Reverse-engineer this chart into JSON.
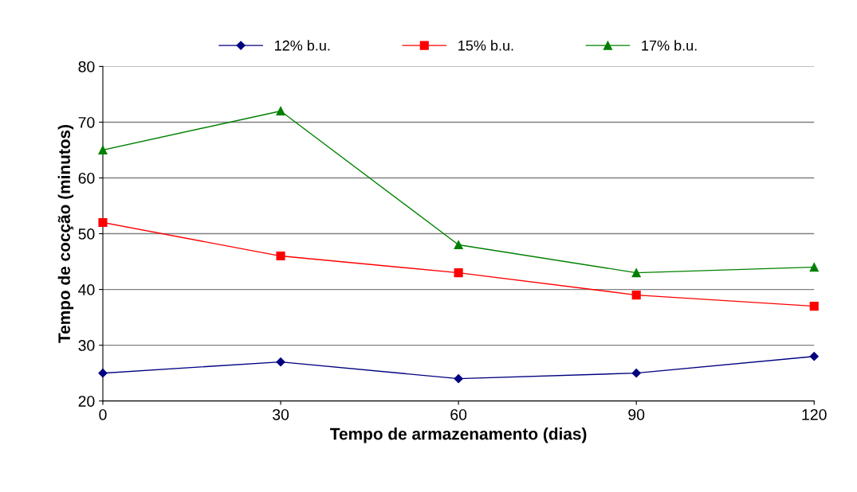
{
  "chart_data": {
    "type": "line",
    "xlabel": "Tempo de armazenamento (dias)",
    "ylabel": "Tempo de cocção (minutos)",
    "x": [
      0,
      30,
      60,
      90,
      120
    ],
    "series": [
      {
        "name": "12% b.u.",
        "color": "#000080",
        "marker": "diamond",
        "values": [
          25,
          27,
          24,
          25,
          28
        ]
      },
      {
        "name": "15% b.u.",
        "color": "#ff0000",
        "marker": "square",
        "values": [
          52,
          46,
          43,
          39,
          37
        ]
      },
      {
        "name": "17% b.u.",
        "color": "#008000",
        "marker": "triangle",
        "values": [
          65,
          72,
          48,
          43,
          44
        ]
      }
    ],
    "xlim": [
      0,
      120
    ],
    "xticks": [
      0,
      30,
      60,
      90,
      120
    ],
    "ylim": [
      20,
      80
    ],
    "yticks": [
      20,
      30,
      40,
      50,
      60,
      70,
      80
    ],
    "grid": "y",
    "legend": "top",
    "line_style": "solid"
  }
}
